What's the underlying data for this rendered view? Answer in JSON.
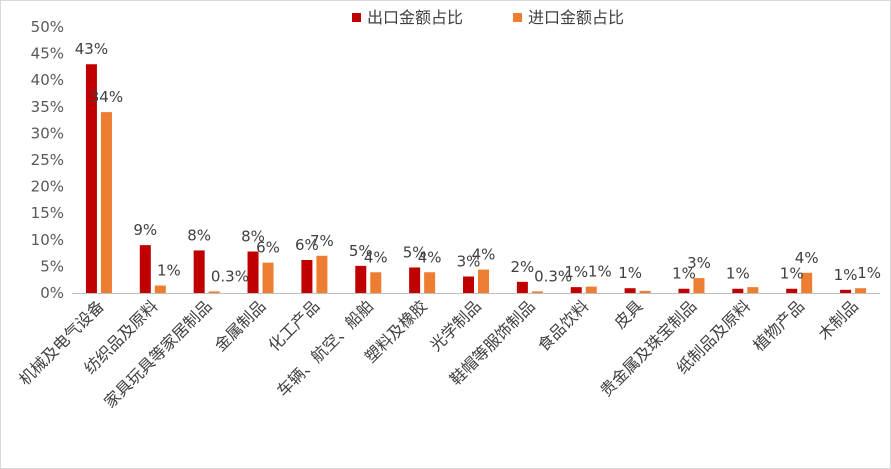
{
  "chart_data": {
    "type": "bar",
    "title": "",
    "xlabel": "",
    "ylabel": "",
    "ylim": [
      0,
      50
    ],
    "yticks": [
      "0%",
      "5%",
      "10%",
      "15%",
      "20%",
      "25%",
      "30%",
      "35%",
      "40%",
      "45%",
      "50%"
    ],
    "grid": false,
    "legend_position": "top",
    "categories": [
      "机械及电气设备",
      "纺织品及原料",
      "家具玩具等家居制品",
      "金属制品",
      "化工产品",
      "车辆、航空、船舶",
      "塑料及橡胶",
      "光学制品",
      "鞋帽等服饰制品",
      "食品饮料",
      "皮具",
      "贵金属及珠宝制品",
      "纸制品及原料",
      "植物产品",
      "木制品"
    ],
    "series": [
      {
        "name": "出口金额占比",
        "color": "#c00000",
        "values": [
          43,
          9,
          8,
          7.8,
          6.2,
          5.1,
          4.8,
          3.1,
          2.1,
          1.1,
          0.9,
          0.8,
          0.8,
          0.8,
          0.6
        ],
        "labels": [
          "43%",
          "9%",
          "8%",
          "8%",
          "6%",
          "5%",
          "5%",
          "3%",
          "2%",
          "1%",
          "1%",
          "1%",
          "1%",
          "1%",
          "1%"
        ]
      },
      {
        "name": "进口金额占比",
        "color": "#ed7d31",
        "values": [
          34,
          1.4,
          0.3,
          5.7,
          7.0,
          3.9,
          3.9,
          4.4,
          0.3,
          1.2,
          0.4,
          2.8,
          1.1,
          3.8,
          0.9
        ],
        "labels": [
          "34%",
          "1%",
          "0.3%",
          "6%",
          "7%",
          "4%",
          "4%",
          "4%",
          "0.3%",
          "1%",
          "",
          "3%",
          "",
          "4%",
          "1%"
        ]
      }
    ]
  }
}
